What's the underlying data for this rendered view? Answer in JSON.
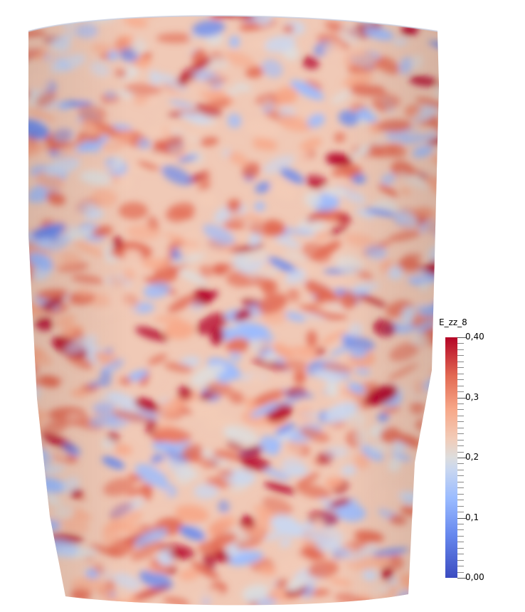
{
  "colormap": {
    "name": "cool-to-warm",
    "colors": [
      "#3b4cc0",
      "#6788ee",
      "#9abbff",
      "#c9d7f0",
      "#dddddd",
      "#f2cbb7",
      "#f7a889",
      "#e26952",
      "#b40426"
    ]
  },
  "legend": {
    "title": "E_zz_8",
    "range": [
      0.0,
      0.4
    ],
    "ticks": [
      {
        "label": "0,40",
        "value": 0.4
      },
      {
        "label": "0,3",
        "value": 0.3
      },
      {
        "label": "0,2",
        "value": 0.2
      },
      {
        "label": "0,1",
        "value": 0.1
      },
      {
        "label": "0,00",
        "value": 0.0
      }
    ]
  }
}
